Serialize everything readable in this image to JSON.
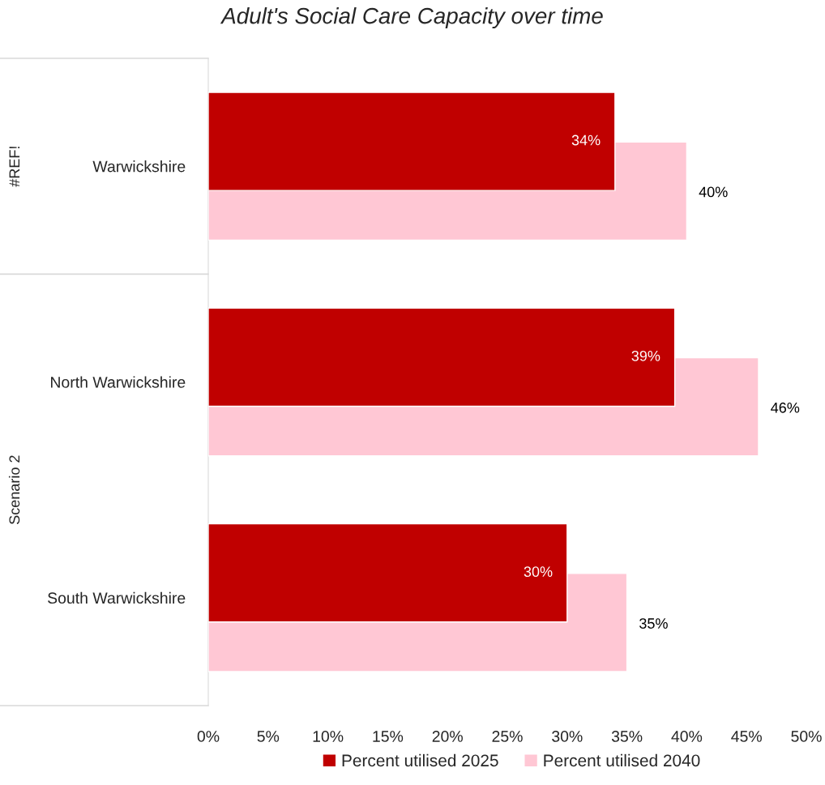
{
  "chart_data": {
    "type": "bar",
    "orientation": "horizontal",
    "title": "Adult's Social Care Capacity over time",
    "categories": [
      "Warwickshire",
      "North Warwickshire",
      "South Warwickshire"
    ],
    "series": [
      {
        "name": "Percent utilised 2025",
        "color": "#c00000",
        "values": [
          34,
          39,
          30
        ],
        "value_labels": [
          "34%",
          "39%",
          "30%"
        ]
      },
      {
        "name": "Percent utilised 2040",
        "color": "#ffc7d4",
        "values": [
          40,
          46,
          35
        ],
        "value_labels": [
          "40%",
          "46%",
          "35%"
        ]
      }
    ],
    "xlim": [
      0,
      50
    ],
    "xticks": [
      {
        "value": 0,
        "label": "0%"
      },
      {
        "value": 5,
        "label": "5%"
      },
      {
        "value": 10,
        "label": "10%"
      },
      {
        "value": 15,
        "label": "15%"
      },
      {
        "value": 20,
        "label": "20%"
      },
      {
        "value": 25,
        "label": "25%"
      },
      {
        "value": 30,
        "label": "30%"
      },
      {
        "value": 35,
        "label": "35%"
      },
      {
        "value": 40,
        "label": "40%"
      },
      {
        "value": 45,
        "label": "45%"
      },
      {
        "value": 50,
        "label": "50%"
      }
    ],
    "annotations": [
      "#REF!",
      "Scenario 2"
    ],
    "grid": false,
    "legend": "bottom"
  }
}
